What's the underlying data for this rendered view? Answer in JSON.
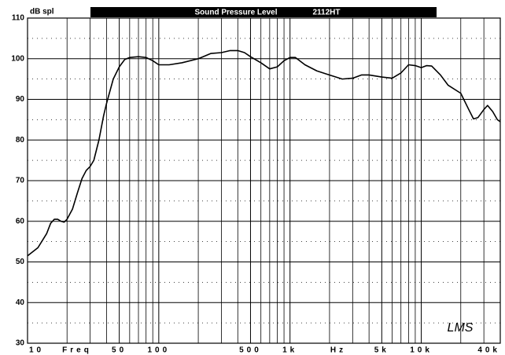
{
  "chart_data": {
    "type": "line",
    "title": "Sound Pressure Level",
    "subtitle": "2112HT",
    "y_label": "dB spl",
    "x_label_left": "Freq",
    "x_label_right": "Hz",
    "annotation": "LMS",
    "log_x": true,
    "grid": true,
    "xlim": [
      10,
      40000
    ],
    "ylim": [
      30,
      110
    ],
    "yticks": [
      30,
      40,
      50,
      60,
      70,
      80,
      90,
      100,
      110
    ],
    "y_minor_grid": [
      35,
      45,
      55,
      65,
      75,
      85,
      95,
      105
    ],
    "xticks": [
      {
        "value": 10,
        "label": "10"
      },
      {
        "value": 50,
        "label": "50"
      },
      {
        "value": 100,
        "label": "100"
      },
      {
        "value": 500,
        "label": "500"
      },
      {
        "value": 1000,
        "label": "1k"
      },
      {
        "value": 5000,
        "label": "5k"
      },
      {
        "value": 10000,
        "label": "10k"
      },
      {
        "value": 40000,
        "label": "40k"
      }
    ],
    "x_grid": [
      20,
      30,
      40,
      60,
      70,
      80,
      90,
      200,
      300,
      400,
      600,
      700,
      800,
      900,
      2000,
      3000,
      4000,
      6000,
      7000,
      8000,
      9000,
      20000,
      30000
    ],
    "series": [
      {
        "name": "2112HT",
        "color": "#000000",
        "x": [
          10,
          12,
          14,
          15,
          16,
          17,
          18,
          19,
          20,
          22,
          24,
          26,
          28,
          30,
          32,
          35,
          38,
          40,
          45,
          50,
          55,
          60,
          70,
          80,
          90,
          100,
          120,
          150,
          200,
          250,
          300,
          350,
          400,
          450,
          500,
          600,
          700,
          800,
          900,
          1000,
          1100,
          1300,
          1600,
          2000,
          2500,
          3000,
          3500,
          4000,
          5000,
          6000,
          7000,
          8000,
          9000,
          10000,
          11000,
          12000,
          14000,
          16000,
          20000,
          23000,
          25000,
          27000,
          30000,
          32000,
          35000,
          38000,
          40000
        ],
        "values": [
          51.5,
          53.5,
          57,
          59.5,
          60.5,
          60.5,
          60,
          59.8,
          60.5,
          63,
          67,
          70.5,
          72.5,
          73.5,
          75,
          80,
          86,
          89,
          95,
          98,
          99.8,
          100.3,
          100.5,
          100.3,
          99.5,
          98.5,
          98.5,
          99,
          100,
          101.3,
          101.5,
          102,
          102,
          101.5,
          100.5,
          99,
          97.5,
          98,
          99.5,
          100.3,
          100.3,
          98.5,
          97,
          96,
          95,
          95.2,
          96,
          96,
          95.5,
          95.2,
          96.5,
          98.5,
          98.3,
          97.8,
          98.3,
          98.2,
          96,
          93.5,
          91.5,
          87.5,
          85.2,
          85.5,
          87.5,
          88.5,
          87,
          85,
          84.5
        ]
      }
    ]
  }
}
